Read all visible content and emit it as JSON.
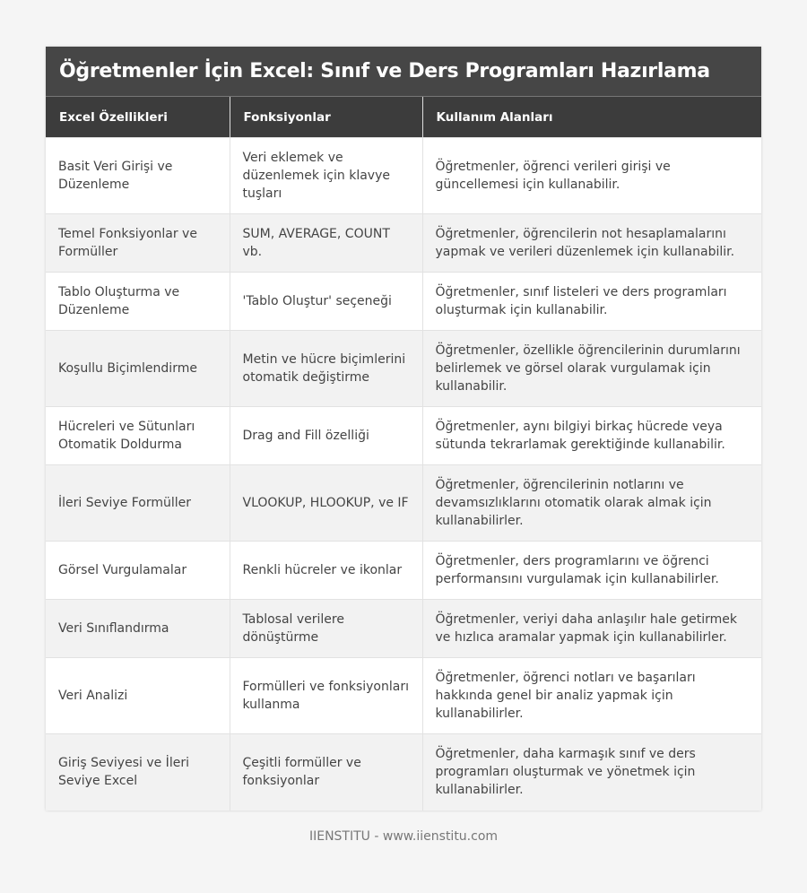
{
  "title": "Öğretmenler İçin Excel: Sınıf ve Ders Programları Hazırlama",
  "columns": [
    "Excel Özellikleri",
    "Fonksiyonlar",
    "Kullanım Alanları"
  ],
  "rows": [
    [
      "Basit Veri Girişi ve Düzenleme",
      "Veri eklemek ve düzenlemek için klavye tuşları",
      "Öğretmenler, öğrenci verileri girişi ve güncellemesi için kullanabilir."
    ],
    [
      "Temel Fonksiyonlar ve Formüller",
      "SUM, AVERAGE, COUNT vb.",
      "Öğretmenler, öğrencilerin not hesaplamalarını yapmak ve verileri düzenlemek için kullanabilir."
    ],
    [
      "Tablo Oluşturma ve Düzenleme",
      "'Tablo Oluştur' seçeneği",
      "Öğretmenler, sınıf listeleri ve ders programları oluşturmak için kullanabilir."
    ],
    [
      "Koşullu Biçimlendirme",
      "Metin ve hücre biçimlerini otomatik değiştirme",
      "Öğretmenler, özellikle öğrencilerinin durumlarını belirlemek ve görsel olarak vurgulamak için kullanabilir."
    ],
    [
      "Hücreleri ve Sütunları Otomatik Doldurma",
      "Drag and Fill özelliği",
      "Öğretmenler, aynı bilgiyi birkaç hücrede veya sütunda tekrarlamak gerektiğinde kullanabilir."
    ],
    [
      "İleri Seviye Formüller",
      "VLOOKUP, HLOOKUP, ve IF",
      "Öğretmenler, öğrencilerinin notlarını ve devamsızlıklarını otomatik olarak almak için kullanabilirler."
    ],
    [
      "Görsel Vurgulamalar",
      "Renkli hücreler ve ikonlar",
      "Öğretmenler, ders programlarını ve öğrenci performansını vurgulamak için kullanabilirler."
    ],
    [
      "Veri Sınıflandırma",
      "Tablosal verilere dönüştürme",
      "Öğretmenler, veriyi daha anlaşılır hale getirmek ve hızlıca aramalar yapmak için kullanabilirler."
    ],
    [
      "Veri Analizi",
      "Formülleri ve fonksiyonları kullanma",
      "Öğretmenler, öğrenci notları ve başarıları hakkında genel bir analiz yapmak için kullanabilirler."
    ],
    [
      "Giriş Seviyesi ve İleri Seviye Excel",
      "Çeşitli formüller ve fonksiyonlar",
      "Öğretmenler, daha karmaşık sınıf ve ders programları oluşturmak ve yönetmek için kullanabilirler."
    ]
  ],
  "footer": "IIENSTITU - www.iienstitu.com"
}
